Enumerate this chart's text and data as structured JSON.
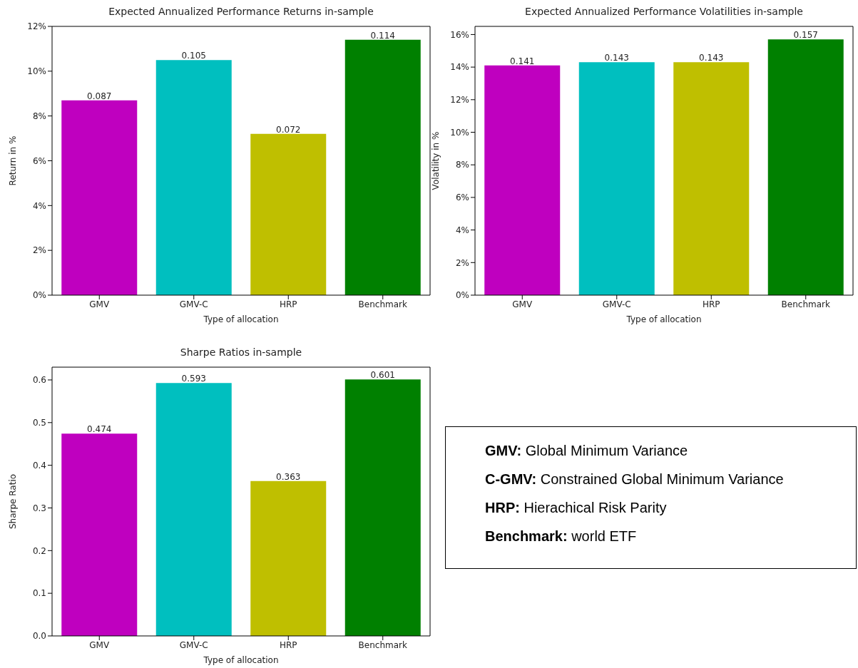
{
  "chart_data": [
    {
      "type": "bar",
      "title": "Expected Annualized Performance Returns in-sample",
      "xlabel": "Type of allocation",
      "ylabel": "Return in %",
      "categories": [
        "GMV",
        "GMV-C",
        "HRP",
        "Benchmark"
      ],
      "values": [
        0.087,
        0.105,
        0.072,
        0.114
      ],
      "colors": [
        "#bf00bf",
        "#00bfbf",
        "#bfbf00",
        "#008000"
      ],
      "ylim": [
        0,
        0.12
      ],
      "yticks": [
        {
          "value": 0,
          "label": "0%"
        },
        {
          "value": 0.02,
          "label": "2%"
        },
        {
          "value": 0.04,
          "label": "4%"
        },
        {
          "value": 0.06,
          "label": "6%"
        },
        {
          "value": 0.08,
          "label": "8%"
        },
        {
          "value": 0.1,
          "label": "10%"
        },
        {
          "value": 0.12,
          "label": "12%"
        }
      ],
      "data_labels": true
    },
    {
      "type": "bar",
      "title": "Expected Annualized Performance Volatilities in-sample",
      "xlabel": "Type of allocation",
      "ylabel": "Volatility in %",
      "categories": [
        "GMV",
        "GMV-C",
        "HRP",
        "Benchmark"
      ],
      "values": [
        0.141,
        0.143,
        0.143,
        0.157
      ],
      "colors": [
        "#bf00bf",
        "#00bfbf",
        "#bfbf00",
        "#008000"
      ],
      "ylim": [
        0,
        0.165
      ],
      "yticks": [
        {
          "value": 0,
          "label": "0%"
        },
        {
          "value": 0.02,
          "label": "2%"
        },
        {
          "value": 0.04,
          "label": "4%"
        },
        {
          "value": 0.06,
          "label": "6%"
        },
        {
          "value": 0.08,
          "label": "8%"
        },
        {
          "value": 0.1,
          "label": "10%"
        },
        {
          "value": 0.12,
          "label": "12%"
        },
        {
          "value": 0.14,
          "label": "14%"
        },
        {
          "value": 0.16,
          "label": "16%"
        }
      ],
      "data_labels": true
    },
    {
      "type": "bar",
      "title": "Sharpe Ratios in-sample",
      "xlabel": "Type of allocation",
      "ylabel": "Sharpe Ratio",
      "categories": [
        "GMV",
        "GMV-C",
        "HRP",
        "Benchmark"
      ],
      "values": [
        0.474,
        0.593,
        0.363,
        0.601
      ],
      "colors": [
        "#bf00bf",
        "#00bfbf",
        "#bfbf00",
        "#008000"
      ],
      "ylim": [
        0,
        0.63
      ],
      "yticks": [
        {
          "value": 0,
          "label": "0.0"
        },
        {
          "value": 0.1,
          "label": "0.1"
        },
        {
          "value": 0.2,
          "label": "0.2"
        },
        {
          "value": 0.3,
          "label": "0.3"
        },
        {
          "value": 0.4,
          "label": "0.4"
        },
        {
          "value": 0.5,
          "label": "0.5"
        },
        {
          "value": 0.6,
          "label": "0.6"
        }
      ],
      "data_labels": true
    },
    {
      "type": "other",
      "annotations": [
        "GMV: Global Minimum Variance",
        "C-GMV: Constrained Global Minimum Variance",
        "HRP: Hierachical Risk Parity",
        "Benchmark: world ETF"
      ]
    }
  ]
}
